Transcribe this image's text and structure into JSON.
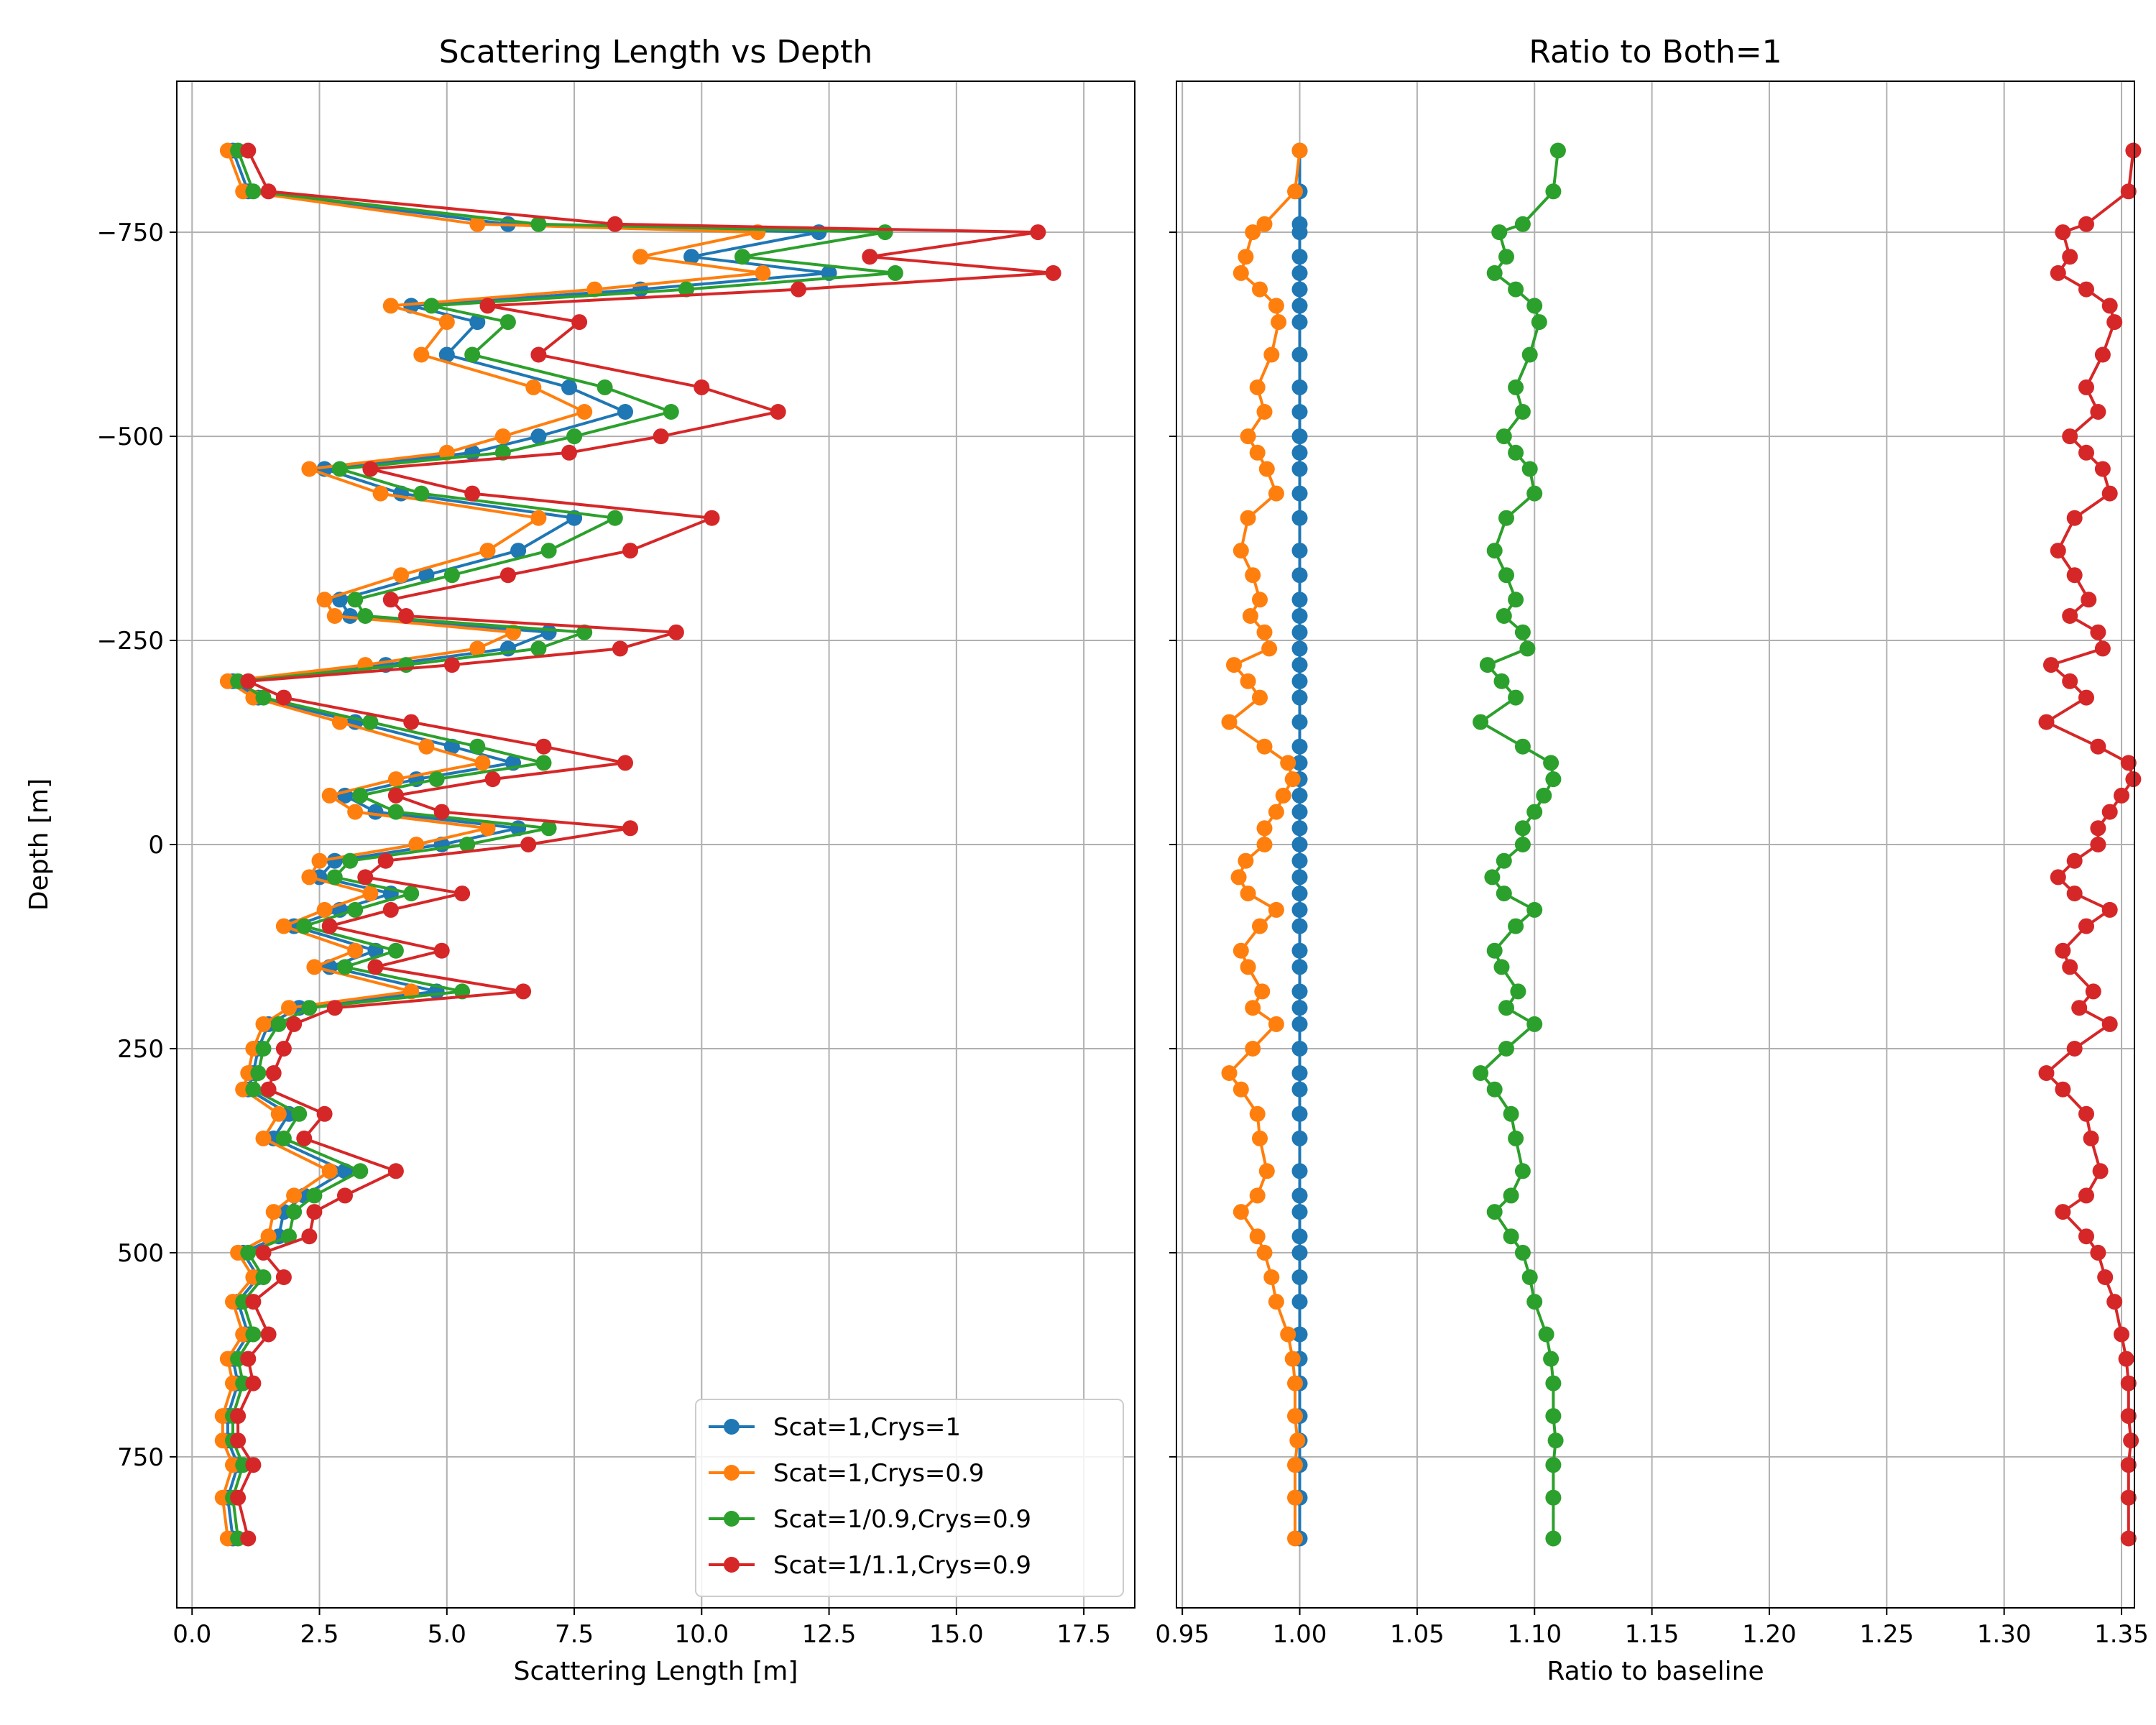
{
  "chart_data": [
    {
      "type": "line",
      "title": "Scattering Length vs Depth",
      "xlabel": "Scattering Length [m]",
      "ylabel": "Depth [m]",
      "xlim": [
        -0.3,
        18.5
      ],
      "ylim": [
        -935,
        935
      ],
      "y_inverted": true,
      "grid": true,
      "xticks": [
        "0.0",
        "2.5",
        "5.0",
        "7.5",
        "10.0",
        "12.5",
        "15.0",
        "17.5"
      ],
      "yticks": [
        "−750",
        "−500",
        "−250",
        "0",
        "250",
        "500",
        "750"
      ],
      "xtick_values": [
        0,
        2.5,
        5,
        7.5,
        10,
        12.5,
        15,
        17.5
      ],
      "ytick_values": [
        -750,
        -500,
        -250,
        0,
        250,
        500,
        750
      ],
      "legend_position": "lower right",
      "depth": [
        -850,
        -800,
        -760,
        -750,
        -720,
        -700,
        -680,
        -660,
        -640,
        -600,
        -560,
        -530,
        -500,
        -480,
        -460,
        -430,
        -400,
        -360,
        -330,
        -300,
        -280,
        -260,
        -240,
        -220,
        -200,
        -180,
        -150,
        -120,
        -100,
        -80,
        -60,
        -40,
        -20,
        0,
        20,
        40,
        60,
        80,
        100,
        130,
        150,
        180,
        200,
        220,
        250,
        280,
        300,
        330,
        360,
        400,
        430,
        450,
        480,
        500,
        530,
        560,
        600,
        630,
        660,
        700,
        730,
        760,
        800,
        850
      ],
      "series": [
        {
          "name": "Scat=1,Crys=1",
          "color": "#1f77b4",
          "values": [
            0.8,
            1.1,
            6.2,
            12.3,
            9.8,
            12.5,
            8.8,
            4.3,
            5.6,
            5.0,
            7.4,
            8.5,
            6.8,
            5.5,
            2.6,
            4.1,
            7.5,
            6.4,
            4.6,
            2.9,
            3.1,
            7.0,
            6.2,
            3.8,
            0.8,
            1.3,
            3.2,
            5.1,
            6.3,
            4.4,
            3.0,
            3.6,
            6.4,
            4.9,
            2.8,
            2.5,
            3.9,
            2.9,
            2.0,
            3.6,
            2.7,
            4.8,
            2.1,
            1.5,
            1.3,
            1.2,
            1.1,
            1.9,
            1.6,
            3.0,
            2.2,
            1.8,
            1.7,
            1.0,
            1.3,
            0.9,
            1.1,
            0.8,
            0.9,
            0.7,
            0.7,
            0.9,
            0.7,
            0.8
          ]
        },
        {
          "name": "Scat=1,Crys=0.9",
          "color": "#ff7f0e",
          "values": [
            0.7,
            1.0,
            5.6,
            11.1,
            8.8,
            11.2,
            7.9,
            3.9,
            5.0,
            4.5,
            6.7,
            7.7,
            6.1,
            5.0,
            2.3,
            3.7,
            6.8,
            5.8,
            4.1,
            2.6,
            2.8,
            6.3,
            5.6,
            3.4,
            0.7,
            1.2,
            2.9,
            4.6,
            5.7,
            4.0,
            2.7,
            3.2,
            5.8,
            4.4,
            2.5,
            2.3,
            3.5,
            2.6,
            1.8,
            3.2,
            2.4,
            4.3,
            1.9,
            1.4,
            1.2,
            1.1,
            1.0,
            1.7,
            1.4,
            2.7,
            2.0,
            1.6,
            1.5,
            0.9,
            1.2,
            0.8,
            1.0,
            0.7,
            0.8,
            0.6,
            0.6,
            0.8,
            0.6,
            0.7
          ]
        },
        {
          "name": "Scat=1/0.9,Crys=0.9",
          "color": "#2ca02c",
          "values": [
            0.9,
            1.2,
            6.8,
            13.6,
            10.8,
            13.8,
            9.7,
            4.7,
            6.2,
            5.5,
            8.1,
            9.4,
            7.5,
            6.1,
            2.9,
            4.5,
            8.3,
            7.0,
            5.1,
            3.2,
            3.4,
            7.7,
            6.8,
            4.2,
            0.9,
            1.4,
            3.5,
            5.6,
            6.9,
            4.8,
            3.3,
            4.0,
            7.0,
            5.4,
            3.1,
            2.8,
            4.3,
            3.2,
            2.2,
            4.0,
            3.0,
            5.3,
            2.3,
            1.7,
            1.4,
            1.3,
            1.2,
            2.1,
            1.8,
            3.3,
            2.4,
            2.0,
            1.9,
            1.1,
            1.4,
            1.0,
            1.2,
            0.9,
            1.0,
            0.8,
            0.8,
            1.0,
            0.8,
            0.9
          ]
        },
        {
          "name": "Scat=1/1.1,Crys=0.9",
          "color": "#d62728",
          "values": [
            1.1,
            1.5,
            8.3,
            16.6,
            13.3,
            16.9,
            11.9,
            5.8,
            7.6,
            6.8,
            10.0,
            11.5,
            9.2,
            7.4,
            3.5,
            5.5,
            10.2,
            8.6,
            6.2,
            3.9,
            4.2,
            9.5,
            8.4,
            5.1,
            1.1,
            1.8,
            4.3,
            6.9,
            8.5,
            5.9,
            4.0,
            4.9,
            8.6,
            6.6,
            3.8,
            3.4,
            5.3,
            3.9,
            2.7,
            4.9,
            3.6,
            6.5,
            2.8,
            2.0,
            1.8,
            1.6,
            1.5,
            2.6,
            2.2,
            4.0,
            3.0,
            2.4,
            2.3,
            1.4,
            1.8,
            1.2,
            1.5,
            1.1,
            1.2,
            0.9,
            0.9,
            1.2,
            0.9,
            1.1
          ]
        }
      ]
    },
    {
      "type": "line",
      "title": "Ratio to Both=1",
      "xlabel": "Ratio to baseline",
      "ylabel": "",
      "xlim": [
        0.9475,
        1.3555
      ],
      "ylim": [
        -935,
        935
      ],
      "y_inverted": true,
      "grid": true,
      "xticks": [
        "0.95",
        "1.00",
        "1.05",
        "1.10",
        "1.15",
        "1.20",
        "1.25",
        "1.30",
        "1.35"
      ],
      "xtick_values": [
        0.95,
        1.0,
        1.05,
        1.1,
        1.15,
        1.2,
        1.25,
        1.3,
        1.35
      ],
      "ytick_values": [
        -750,
        -500,
        -250,
        0,
        250,
        500,
        750
      ],
      "depth": [
        -850,
        -800,
        -760,
        -750,
        -720,
        -700,
        -680,
        -660,
        -640,
        -600,
        -560,
        -530,
        -500,
        -480,
        -460,
        -430,
        -400,
        -360,
        -330,
        -300,
        -280,
        -260,
        -240,
        -220,
        -200,
        -180,
        -150,
        -120,
        -100,
        -80,
        -60,
        -40,
        -20,
        0,
        20,
        40,
        60,
        80,
        100,
        130,
        150,
        180,
        200,
        220,
        250,
        280,
        300,
        330,
        360,
        400,
        430,
        450,
        480,
        500,
        530,
        560,
        600,
        630,
        660,
        700,
        730,
        760,
        800,
        850
      ],
      "series": [
        {
          "name": "Scat=1,Crys=1",
          "color": "#1f77b4",
          "values": [
            1.0,
            1.0,
            1.0,
            1.0,
            1.0,
            1.0,
            1.0,
            1.0,
            1.0,
            1.0,
            1.0,
            1.0,
            1.0,
            1.0,
            1.0,
            1.0,
            1.0,
            1.0,
            1.0,
            1.0,
            1.0,
            1.0,
            1.0,
            1.0,
            1.0,
            1.0,
            1.0,
            1.0,
            1.0,
            1.0,
            1.0,
            1.0,
            1.0,
            1.0,
            1.0,
            1.0,
            1.0,
            1.0,
            1.0,
            1.0,
            1.0,
            1.0,
            1.0,
            1.0,
            1.0,
            1.0,
            1.0,
            1.0,
            1.0,
            1.0,
            1.0,
            1.0,
            1.0,
            1.0,
            1.0,
            1.0,
            1.0,
            1.0,
            1.0,
            1.0,
            1.0,
            1.0,
            1.0,
            1.0
          ]
        },
        {
          "name": "Scat=1,Crys=0.9",
          "color": "#ff7f0e",
          "values": [
            1.0,
            0.998,
            0.985,
            0.98,
            0.977,
            0.975,
            0.983,
            0.99,
            0.991,
            0.988,
            0.982,
            0.985,
            0.978,
            0.982,
            0.986,
            0.99,
            0.978,
            0.975,
            0.98,
            0.983,
            0.979,
            0.985,
            0.987,
            0.972,
            0.978,
            0.983,
            0.97,
            0.985,
            0.995,
            0.997,
            0.993,
            0.99,
            0.985,
            0.985,
            0.977,
            0.974,
            0.978,
            0.99,
            0.983,
            0.975,
            0.978,
            0.984,
            0.98,
            0.99,
            0.98,
            0.97,
            0.975,
            0.982,
            0.983,
            0.986,
            0.982,
            0.975,
            0.982,
            0.985,
            0.988,
            0.99,
            0.995,
            0.997,
            0.998,
            0.998,
            0.999,
            0.998,
            0.998,
            0.998
          ]
        },
        {
          "name": "Scat=1/0.9,Crys=0.9",
          "color": "#2ca02c",
          "values": [
            1.11,
            1.108,
            1.095,
            1.085,
            1.088,
            1.083,
            1.092,
            1.1,
            1.102,
            1.098,
            1.092,
            1.095,
            1.087,
            1.092,
            1.098,
            1.1,
            1.088,
            1.083,
            1.088,
            1.092,
            1.087,
            1.095,
            1.097,
            1.08,
            1.086,
            1.092,
            1.077,
            1.095,
            1.107,
            1.108,
            1.104,
            1.1,
            1.095,
            1.095,
            1.087,
            1.082,
            1.087,
            1.1,
            1.092,
            1.083,
            1.086,
            1.093,
            1.088,
            1.1,
            1.088,
            1.077,
            1.083,
            1.09,
            1.092,
            1.095,
            1.09,
            1.083,
            1.09,
            1.095,
            1.098,
            1.1,
            1.105,
            1.107,
            1.108,
            1.108,
            1.109,
            1.108,
            1.108,
            1.108
          ]
        },
        {
          "name": "Scat=1/1.1,Crys=0.9",
          "color": "#d62728",
          "values": [
            1.355,
            1.353,
            1.335,
            1.325,
            1.328,
            1.323,
            1.335,
            1.345,
            1.347,
            1.342,
            1.335,
            1.34,
            1.328,
            1.335,
            1.342,
            1.345,
            1.33,
            1.323,
            1.33,
            1.336,
            1.328,
            1.34,
            1.342,
            1.32,
            1.328,
            1.335,
            1.318,
            1.34,
            1.353,
            1.355,
            1.35,
            1.345,
            1.34,
            1.34,
            1.33,
            1.323,
            1.33,
            1.345,
            1.335,
            1.325,
            1.328,
            1.338,
            1.332,
            1.345,
            1.33,
            1.318,
            1.325,
            1.335,
            1.337,
            1.341,
            1.335,
            1.325,
            1.335,
            1.34,
            1.343,
            1.347,
            1.35,
            1.352,
            1.353,
            1.353,
            1.354,
            1.353,
            1.353,
            1.353
          ]
        }
      ]
    }
  ]
}
